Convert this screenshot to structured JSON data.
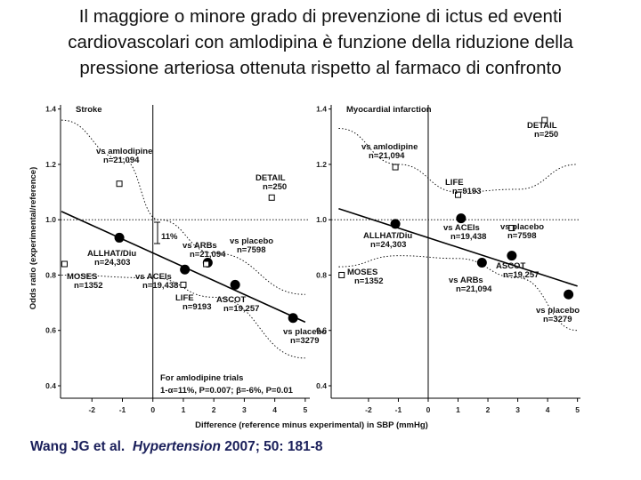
{
  "title": {
    "line1": "Il maggiore o minore grado di prevenzione di ictus ed eventi",
    "line2": "cardiovascolari con amlodipina è funzione della riduzione della",
    "line3": "pressione arteriosa ottenuta rispetto al farmaco di confronto"
  },
  "citation": {
    "authors": "Wang JG et al.",
    "journal": "Hypertension",
    "details": "2007; 50: 181-8"
  },
  "axes": {
    "ylabel": "Odds ratio (experimental/reference)",
    "xlabel": "Difference (reference minus experimental) in SBP (mmHg)"
  },
  "chart_data": [
    {
      "type": "scatter",
      "title": "Stroke",
      "xlim": [
        -3,
        5
      ],
      "ylim": [
        0.4,
        1.4
      ],
      "xticks": [
        -2,
        -1,
        0,
        1,
        2,
        3,
        4,
        5
      ],
      "yticks": [
        0.4,
        0.6,
        0.8,
        1.0,
        1.2,
        1.4
      ],
      "points": [
        {
          "label": "vs amlodipine",
          "n": "n=21,094",
          "x": -1.1,
          "y": 1.13,
          "marker": "open"
        },
        {
          "label": "DETAIL",
          "n": "n=250",
          "x": 3.9,
          "y": 1.08,
          "marker": "open"
        },
        {
          "label": "ALLHAT/Diu",
          "n": "n=24,303",
          "x": -1.1,
          "y": 0.935,
          "marker": "filled"
        },
        {
          "label": "vs ARBs",
          "n": "n=21,094",
          "x": 1.8,
          "y": 0.845,
          "marker": "filled"
        },
        {
          "label": "vs placebo",
          "n": "n=7598",
          "x": 1.75,
          "y": 0.84,
          "marker": "open"
        },
        {
          "label": "MOSES",
          "n": "n=1352",
          "x": -2.9,
          "y": 0.84,
          "marker": "open"
        },
        {
          "label": "vs ACEIs",
          "n": "n=19,438",
          "x": 1.05,
          "y": 0.82,
          "marker": "filled"
        },
        {
          "label": "LIFE",
          "n": "n=9193",
          "x": 1.0,
          "y": 0.765,
          "marker": "open"
        },
        {
          "label": "ASCOT",
          "n": "n=19,257",
          "x": 2.7,
          "y": 0.765,
          "marker": "filled"
        },
        {
          "label": "vs placebo",
          "n": "n=3279",
          "x": 4.6,
          "y": 0.645,
          "marker": "filled"
        }
      ],
      "regression": {
        "x": [
          -3,
          5
        ],
        "y": [
          1.03,
          0.63
        ]
      },
      "ci_upper": {
        "x": [
          -3,
          -1,
          0.2,
          2,
          5
        ],
        "y": [
          1.36,
          1.22,
          1.0,
          0.88,
          0.73
        ]
      },
      "ci_lower": {
        "x": [
          -3,
          0,
          2,
          5
        ],
        "y": [
          0.8,
          0.79,
          0.72,
          0.5
        ]
      },
      "annotation_pct": "11%",
      "footnote_line1": "For amlodipine trials",
      "footnote_line2": "1-α=11%, P=0.007; β=-6%, P=0.01"
    },
    {
      "type": "scatter",
      "title": "Myocardial infarction",
      "xlim": [
        -3,
        5
      ],
      "ylim": [
        0.4,
        1.4
      ],
      "xticks": [
        -2,
        -1,
        0,
        1,
        2,
        3,
        4,
        5
      ],
      "yticks": [
        0.4,
        0.6,
        0.8,
        1.0,
        1.2,
        1.4
      ],
      "points": [
        {
          "label": "DETAIL",
          "n": "n=250",
          "x": 3.9,
          "y": 1.36,
          "marker": "open"
        },
        {
          "label": "vs amlodipine",
          "n": "n=21,094",
          "x": -1.1,
          "y": 1.19,
          "marker": "open"
        },
        {
          "label": "LIFE",
          "n": "n=9193",
          "x": 1.0,
          "y": 1.09,
          "marker": "open"
        },
        {
          "label": "ALLHAT/Diu",
          "n": "n=24,303",
          "x": -1.1,
          "y": 0.985,
          "marker": "filled"
        },
        {
          "label": "vs ACEIs",
          "n": "n=19,438",
          "x": 1.1,
          "y": 1.005,
          "marker": "filled"
        },
        {
          "label": "vs placebo",
          "n": "n=7598",
          "x": 2.8,
          "y": 0.97,
          "marker": "open"
        },
        {
          "label": "ASCOT",
          "n": "n=19,257",
          "x": 2.8,
          "y": 0.87,
          "marker": "filled"
        },
        {
          "label": "vs ARBs",
          "n": "n=21,094",
          "x": 1.8,
          "y": 0.845,
          "marker": "filled"
        },
        {
          "label": "MOSES",
          "n": "n=1352",
          "x": -2.9,
          "y": 0.8,
          "marker": "open"
        },
        {
          "label": "vs placebo",
          "n": "n=3279",
          "x": 4.7,
          "y": 0.73,
          "marker": "filled"
        }
      ],
      "regression": {
        "x": [
          -3,
          5
        ],
        "y": [
          1.04,
          0.76
        ]
      },
      "ci_upper": {
        "x": [
          -3,
          -1,
          1,
          3,
          5
        ],
        "y": [
          1.33,
          1.2,
          1.1,
          1.11,
          1.2
        ]
      },
      "ci_lower": {
        "x": [
          -3,
          -1,
          1,
          3,
          5
        ],
        "y": [
          0.83,
          0.87,
          0.86,
          0.79,
          0.6
        ]
      }
    }
  ]
}
